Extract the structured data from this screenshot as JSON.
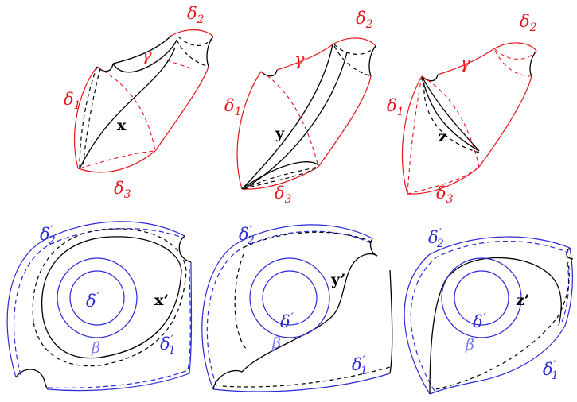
{
  "labels": {
    "delta1": "δ",
    "delta1_sub": "1",
    "delta2": "δ",
    "delta2_sub": "2",
    "delta3": "δ",
    "delta3_sub": "3",
    "gamma": "γ",
    "x": "x",
    "y": "y",
    "z": "z",
    "delta1p": "δ",
    "delta1p_sub": "1",
    "delta2p": "δ",
    "delta2p_sub": "2",
    "deltap": "δ",
    "prime": "′",
    "beta": "β",
    "xp": "x’",
    "yp": "y’",
    "zp": "z’"
  },
  "colors": {
    "red": "#e8141c",
    "blue": "#2a2ad8",
    "blue_light": "#7a7aee",
    "black": "#000000"
  }
}
